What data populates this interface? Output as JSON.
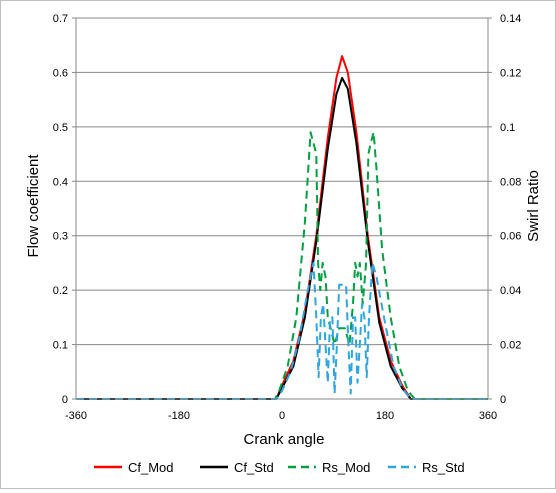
{
  "chart_data": {
    "type": "line",
    "title": "",
    "xlabel": "Crank angle",
    "ylabel_left": "Flow coefficient",
    "ylabel_right": "Swirl Ratio",
    "xlim": [
      -360,
      360
    ],
    "ylim_left": [
      0,
      0.7
    ],
    "ylim_right": [
      0,
      0.14
    ],
    "x_ticks": [
      -360,
      -180,
      0,
      180,
      360
    ],
    "x_tick_labels": [
      "-360",
      "-180",
      "0",
      "180",
      "360"
    ],
    "y_left_ticks": [
      0,
      0.1,
      0.2,
      0.3,
      0.4,
      0.5,
      0.6,
      0.7
    ],
    "y_left_tick_labels": [
      "0",
      "0.1",
      "0.2",
      "0.3",
      "0.4",
      "0.5",
      "0.6",
      "0.7"
    ],
    "y_right_ticks": [
      0,
      0.02,
      0.04,
      0.06,
      0.08,
      0.1,
      0.12,
      0.14
    ],
    "y_right_tick_labels": [
      "0",
      "0.02",
      "0.04",
      "0.06",
      "0.08",
      "0.1",
      "0.12",
      "0.14"
    ],
    "grid": "horizontal",
    "legend_position": "bottom",
    "series": [
      {
        "name": "Cf_Mod",
        "axis": "left",
        "color": "#ff0000",
        "dash": "solid",
        "x": [
          -360,
          -10,
          0,
          20,
          40,
          60,
          80,
          95,
          105,
          115,
          130,
          150,
          170,
          190,
          210,
          225,
          230,
          360
        ],
        "y": [
          0,
          0,
          0.025,
          0.07,
          0.16,
          0.3,
          0.48,
          0.59,
          0.63,
          0.6,
          0.49,
          0.3,
          0.15,
          0.07,
          0.025,
          0,
          0,
          0
        ]
      },
      {
        "name": "Cf_Std",
        "axis": "left",
        "color": "#000000",
        "dash": "solid",
        "x": [
          -360,
          -10,
          0,
          20,
          40,
          60,
          80,
          95,
          105,
          115,
          130,
          150,
          170,
          190,
          210,
          225,
          230,
          360
        ],
        "y": [
          0,
          0,
          0.02,
          0.06,
          0.15,
          0.29,
          0.46,
          0.56,
          0.59,
          0.57,
          0.47,
          0.29,
          0.14,
          0.06,
          0.02,
          0,
          0,
          0
        ]
      },
      {
        "name": "Rs_Mod",
        "axis": "right",
        "color": "#00a040",
        "dash": "dash",
        "x": [
          -360,
          -12,
          -5,
          10,
          25,
          40,
          50,
          55,
          60,
          63,
          67,
          71,
          76,
          80,
          85,
          92,
          100,
          110,
          118,
          124,
          128,
          132,
          136,
          141,
          147,
          151,
          155,
          160,
          165,
          175,
          190,
          205,
          220,
          232,
          360
        ],
        "y": [
          0,
          0,
          0.003,
          0.012,
          0.03,
          0.065,
          0.098,
          0.094,
          0.09,
          0.05,
          0.04,
          0.05,
          0.045,
          0.03,
          0.026,
          0.02,
          0.026,
          0.026,
          0.02,
          0.035,
          0.05,
          0.045,
          0.05,
          0.035,
          0.05,
          0.09,
          0.094,
          0.098,
          0.085,
          0.055,
          0.03,
          0.012,
          0.003,
          0,
          0
        ]
      },
      {
        "name": "Rs_Std",
        "axis": "right",
        "color": "#2ea6e0",
        "dash": "dash",
        "x": [
          -360,
          -10,
          0,
          15,
          30,
          45,
          55,
          60,
          64,
          68,
          72,
          76,
          80,
          84,
          88,
          92,
          96,
          100,
          106,
          112,
          116,
          120,
          124,
          128,
          132,
          136,
          140,
          144,
          148,
          152,
          158,
          165,
          180,
          195,
          210,
          225,
          360
        ],
        "y": [
          0,
          0,
          0.003,
          0.01,
          0.022,
          0.04,
          0.05,
          0.03,
          0.008,
          0.03,
          0.035,
          0.02,
          0.006,
          0.03,
          0.03,
          0.002,
          0.02,
          0.042,
          0.042,
          0.042,
          0.02,
          0.002,
          0.03,
          0.03,
          0.006,
          0.02,
          0.035,
          0.03,
          0.008,
          0.03,
          0.05,
          0.045,
          0.028,
          0.012,
          0.004,
          0,
          0
        ]
      }
    ]
  }
}
